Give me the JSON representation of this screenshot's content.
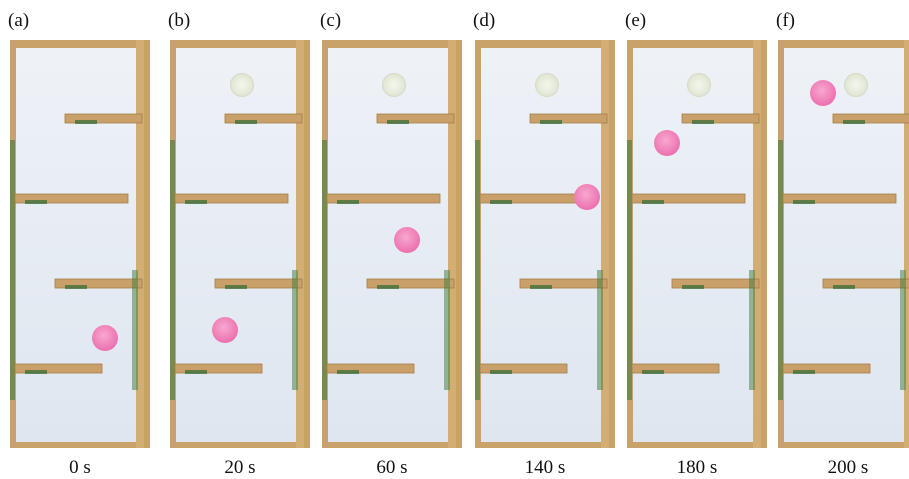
{
  "panels": [
    {
      "label": "(a)",
      "time": "0 s"
    },
    {
      "label": "(b)",
      "time": "20 s"
    },
    {
      "label": "(c)",
      "time": "60 s"
    },
    {
      "label": "(d)",
      "time": "140 s"
    },
    {
      "label": "(e)",
      "time": "180 s"
    },
    {
      "label": "(f)",
      "time": "200 s"
    }
  ]
}
